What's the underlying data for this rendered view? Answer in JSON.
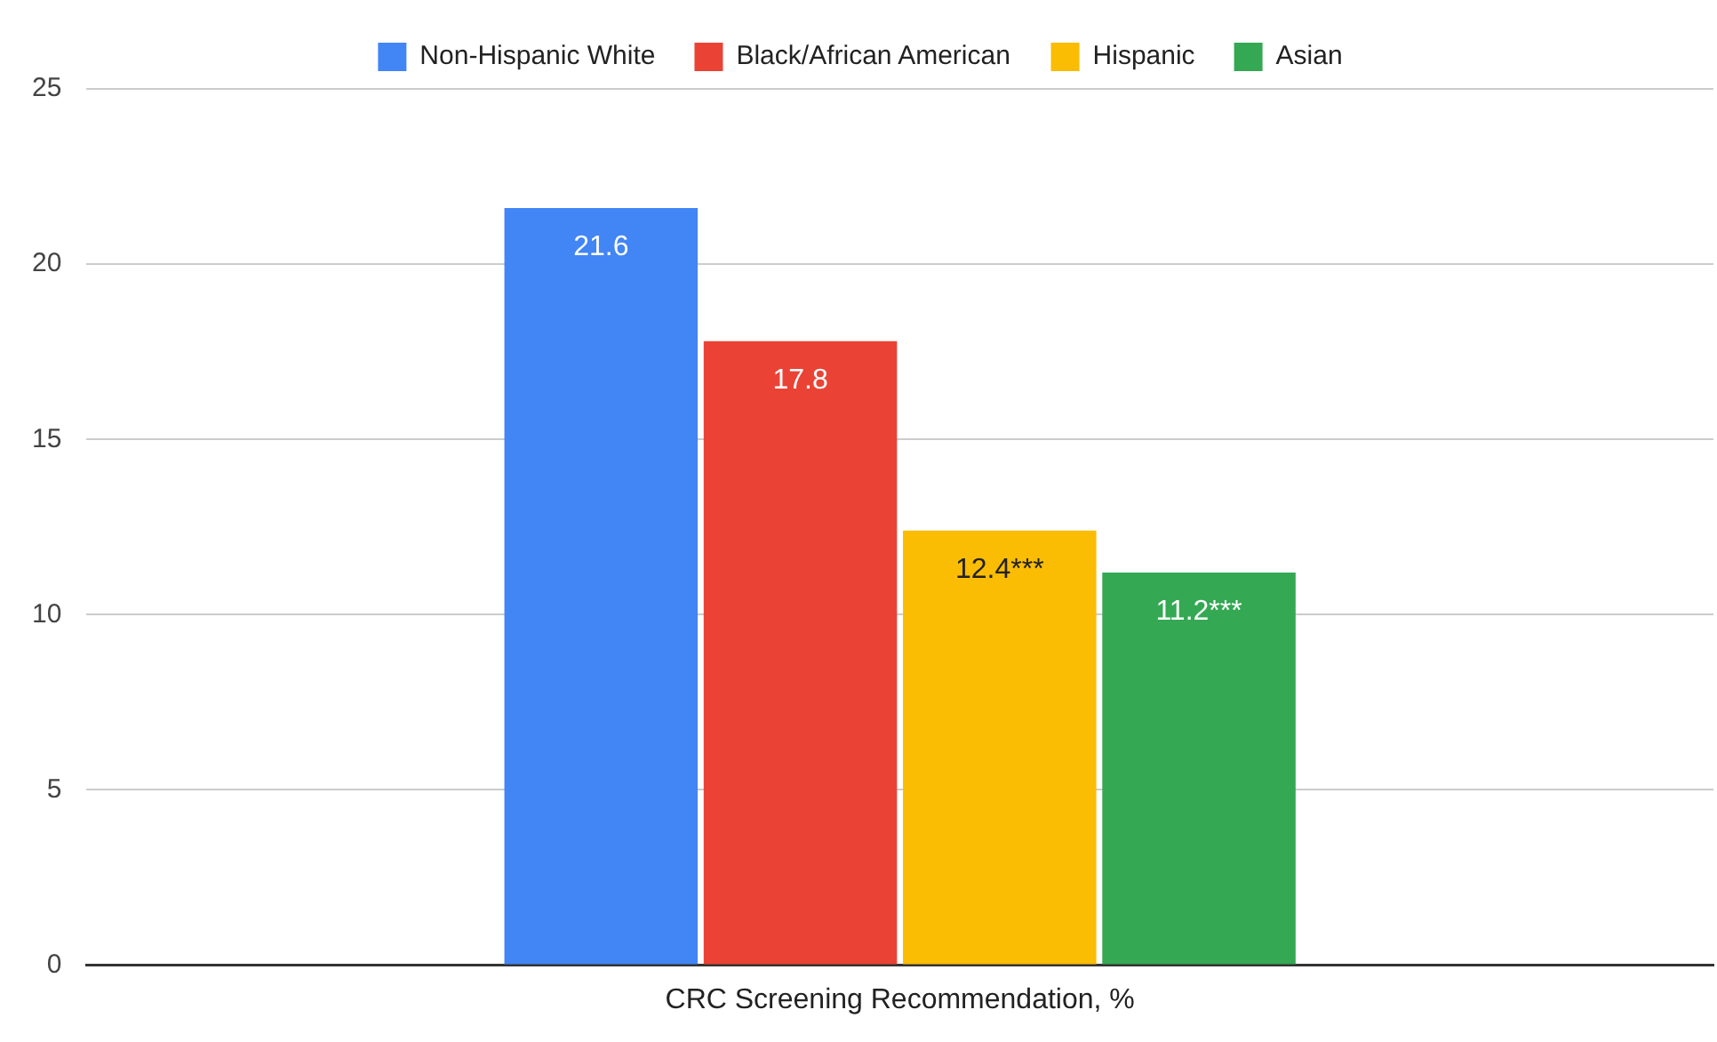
{
  "chart_data": {
    "type": "bar",
    "categories": [
      "CRC Screening Recommendation, %"
    ],
    "series": [
      {
        "name": "Non-Hispanic White",
        "color": "#4285f4",
        "values": [
          21.6
        ],
        "value_labels": [
          "21.6"
        ]
      },
      {
        "name": "Black/African American",
        "color": "#ea4335",
        "values": [
          17.8
        ],
        "value_labels": [
          "17.8"
        ]
      },
      {
        "name": "Hispanic",
        "color": "#fbbc04",
        "values": [
          12.4
        ],
        "value_labels": [
          "12.4***"
        ]
      },
      {
        "name": "Asian",
        "color": "#34a853",
        "values": [
          11.2
        ],
        "value_labels": [
          "11.2***"
        ]
      }
    ],
    "ylim": [
      0,
      25
    ],
    "yticks": [
      0,
      5,
      10,
      15,
      20,
      25
    ],
    "grid": "y",
    "legend": "top"
  }
}
